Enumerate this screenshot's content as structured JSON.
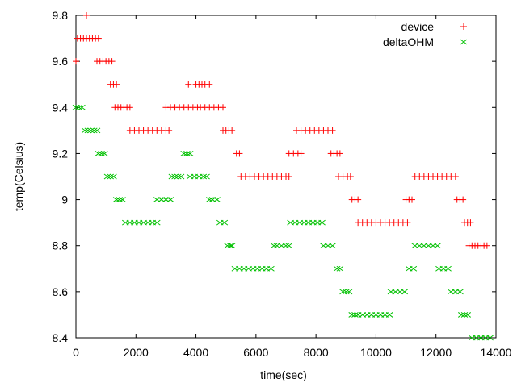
{
  "chart_data": {
    "type": "scatter",
    "title": "",
    "xlabel": "time(sec)",
    "ylabel": "temp(Celsius)",
    "xlim": [
      0,
      14000
    ],
    "ylim": [
      8.4,
      9.8
    ],
    "xticks": [
      0,
      2000,
      4000,
      6000,
      8000,
      10000,
      12000,
      14000
    ],
    "xtick_labels": [
      "0",
      "2000",
      "4000",
      "6000",
      "8000",
      "10000",
      "12000",
      "14000"
    ],
    "yticks": [
      8.4,
      8.6,
      8.8,
      9.0,
      9.2,
      9.4,
      9.6,
      9.8
    ],
    "ytick_labels": [
      "8.4",
      "8.6",
      "8.8",
      "9",
      "9.2",
      "9.4",
      "9.6",
      "9.8"
    ],
    "grid": false,
    "legend_position": "top-right",
    "series": [
      {
        "name": "device",
        "color": "#ff0000",
        "marker": "plus",
        "x": [
          0,
          350,
          50,
          150,
          250,
          350,
          450,
          550,
          650,
          750,
          700,
          800,
          900,
          1000,
          1100,
          1200,
          1150,
          1250,
          1350,
          1300,
          1400,
          1500,
          1600,
          1700,
          1800,
          1800,
          1950,
          2100,
          2250,
          2400,
          2550,
          2700,
          2850,
          3000,
          3100,
          3000,
          3150,
          3300,
          3450,
          3600,
          3750,
          3900,
          4050,
          4150,
          3750,
          4000,
          4100,
          4200,
          4300,
          4450,
          4300,
          4450,
          4600,
          4750,
          4900,
          4900,
          5000,
          5100,
          5200,
          5350,
          5450,
          5500,
          5650,
          5800,
          5950,
          6100,
          6250,
          6400,
          6550,
          6700,
          6850,
          7000,
          7100,
          7100,
          7250,
          7400,
          7500,
          7350,
          7500,
          7650,
          7800,
          7950,
          8100,
          8250,
          8400,
          8550,
          8500,
          8600,
          8700,
          8800,
          8750,
          8900,
          9050,
          9150,
          9200,
          9300,
          9400,
          9400,
          9550,
          9700,
          9850,
          10000,
          10150,
          10300,
          10450,
          10600,
          10750,
          10900,
          11050,
          11000,
          11100,
          11200,
          11300,
          11450,
          11600,
          11750,
          11900,
          12050,
          12200,
          12350,
          12500,
          12650,
          12700,
          12800,
          12900,
          12950,
          13050,
          13150,
          13100,
          13200,
          13300,
          13400,
          13500,
          13600,
          13700
        ],
        "y": [
          9.6,
          9.8,
          9.7,
          9.7,
          9.7,
          9.7,
          9.7,
          9.7,
          9.7,
          9.7,
          9.6,
          9.6,
          9.6,
          9.6,
          9.6,
          9.6,
          9.5,
          9.5,
          9.5,
          9.4,
          9.4,
          9.4,
          9.4,
          9.4,
          9.4,
          9.3,
          9.3,
          9.3,
          9.3,
          9.3,
          9.3,
          9.3,
          9.3,
          9.3,
          9.3,
          9.4,
          9.4,
          9.4,
          9.4,
          9.4,
          9.4,
          9.4,
          9.4,
          9.4,
          9.5,
          9.5,
          9.5,
          9.5,
          9.5,
          9.5,
          9.4,
          9.4,
          9.4,
          9.4,
          9.4,
          9.3,
          9.3,
          9.3,
          9.3,
          9.2,
          9.2,
          9.1,
          9.1,
          9.1,
          9.1,
          9.1,
          9.1,
          9.1,
          9.1,
          9.1,
          9.1,
          9.1,
          9.1,
          9.2,
          9.2,
          9.2,
          9.2,
          9.3,
          9.3,
          9.3,
          9.3,
          9.3,
          9.3,
          9.3,
          9.3,
          9.3,
          9.2,
          9.2,
          9.2,
          9.2,
          9.1,
          9.1,
          9.1,
          9.1,
          9.0,
          9.0,
          9.0,
          8.9,
          8.9,
          8.9,
          8.9,
          8.9,
          8.9,
          8.9,
          8.9,
          8.9,
          8.9,
          8.9,
          8.9,
          9.0,
          9.0,
          9.0,
          9.1,
          9.1,
          9.1,
          9.1,
          9.1,
          9.1,
          9.1,
          9.1,
          9.1,
          9.1,
          9.0,
          9.0,
          9.0,
          8.9,
          8.9,
          8.9,
          8.8,
          8.8,
          8.8,
          8.8,
          8.8,
          8.8,
          8.8
        ]
      },
      {
        "name": "deltaOHM",
        "color": "#00c000",
        "marker": "x",
        "x": [
          0,
          100,
          200,
          300,
          400,
          500,
          600,
          700,
          750,
          850,
          950,
          1050,
          1150,
          1250,
          1350,
          1450,
          1550,
          1650,
          1800,
          1950,
          2100,
          2250,
          2400,
          2550,
          2700,
          2700,
          2850,
          3000,
          3150,
          3200,
          3300,
          3400,
          3500,
          3600,
          3700,
          3800,
          3800,
          3950,
          4100,
          4250,
          4350,
          4450,
          4550,
          4700,
          4800,
          4950,
          5050,
          5150,
          5200,
          5300,
          5450,
          5600,
          5750,
          5900,
          6050,
          6200,
          6350,
          6500,
          6600,
          6700,
          6850,
          7000,
          7100,
          7150,
          7300,
          7450,
          7600,
          7750,
          7900,
          8050,
          8200,
          8250,
          8400,
          8550,
          8700,
          8800,
          8900,
          9000,
          9100,
          9200,
          9300,
          9400,
          9550,
          9700,
          9850,
          10000,
          10150,
          10300,
          10450,
          10500,
          10650,
          10800,
          10950,
          11100,
          11250,
          11300,
          11450,
          11600,
          11750,
          11900,
          12050,
          12100,
          12250,
          12400,
          12500,
          12650,
          12800,
          12850,
          12950,
          13050,
          13200,
          13350,
          13500,
          13650,
          13800
        ],
        "y": [
          9.4,
          9.4,
          9.4,
          9.3,
          9.3,
          9.3,
          9.3,
          9.3,
          9.2,
          9.2,
          9.2,
          9.1,
          9.1,
          9.1,
          9.0,
          9.0,
          9.0,
          8.9,
          8.9,
          8.9,
          8.9,
          8.9,
          8.9,
          8.9,
          8.9,
          9.0,
          9.0,
          9.0,
          9.0,
          9.1,
          9.1,
          9.1,
          9.1,
          9.2,
          9.2,
          9.2,
          9.1,
          9.1,
          9.1,
          9.1,
          9.1,
          9.0,
          9.0,
          9.0,
          8.9,
          8.9,
          8.8,
          8.8,
          8.8,
          8.7,
          8.7,
          8.7,
          8.7,
          8.7,
          8.7,
          8.7,
          8.7,
          8.7,
          8.8,
          8.8,
          8.8,
          8.8,
          8.8,
          8.9,
          8.9,
          8.9,
          8.9,
          8.9,
          8.9,
          8.9,
          8.9,
          8.8,
          8.8,
          8.8,
          8.7,
          8.7,
          8.6,
          8.6,
          8.6,
          8.5,
          8.5,
          8.5,
          8.5,
          8.5,
          8.5,
          8.5,
          8.5,
          8.5,
          8.5,
          8.6,
          8.6,
          8.6,
          8.6,
          8.7,
          8.7,
          8.8,
          8.8,
          8.8,
          8.8,
          8.8,
          8.8,
          8.7,
          8.7,
          8.7,
          8.6,
          8.6,
          8.6,
          8.5,
          8.5,
          8.5,
          8.4,
          8.4,
          8.4,
          8.4,
          8.4
        ]
      }
    ]
  }
}
